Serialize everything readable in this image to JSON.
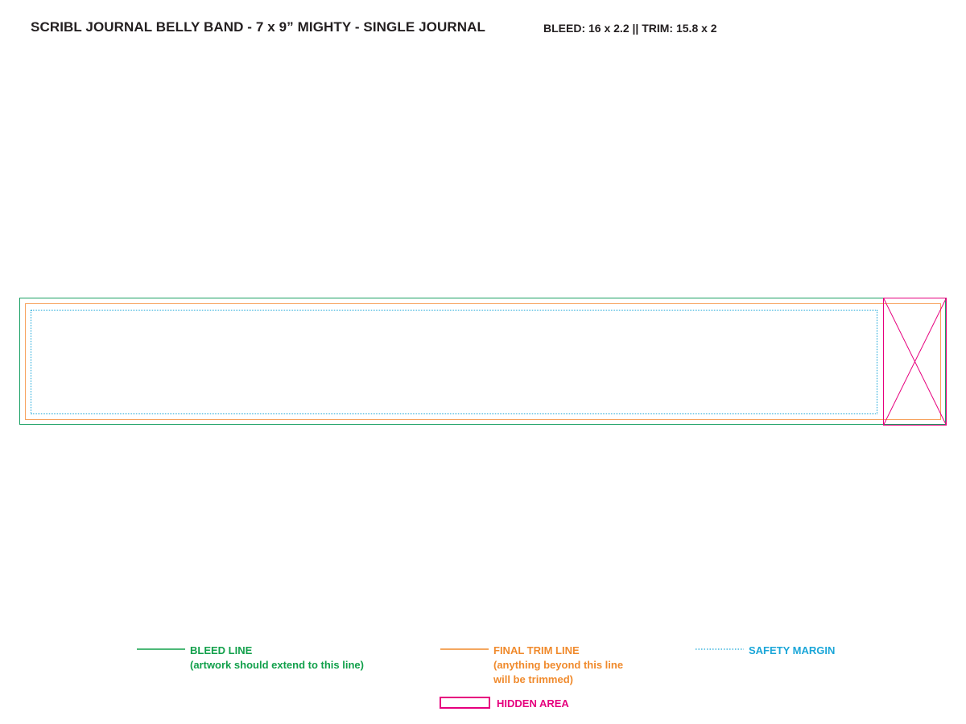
{
  "header": {
    "title": "SCRIBL JOURNAL BELLY BAND - 7 x 9” MIGHTY - SINGLE JOURNAL",
    "specs": "BLEED: 16 x 2.2 || TRIM: 15.8 x 2"
  },
  "colors": {
    "bleed": "#1aa064",
    "trim": "#f7a35f",
    "safety": "#1aa6d8",
    "hidden": "#e6007e"
  },
  "legend": {
    "bleed": {
      "label": "BLEED LINE",
      "note": "(artwork should extend to this line)"
    },
    "trim": {
      "label": "FINAL TRIM LINE",
      "note_line1": "(anything beyond this line",
      "note_line2": "will be trimmed)"
    },
    "safety": {
      "label": "SAFETY MARGIN"
    },
    "hidden": {
      "label": "HIDDEN AREA"
    }
  }
}
